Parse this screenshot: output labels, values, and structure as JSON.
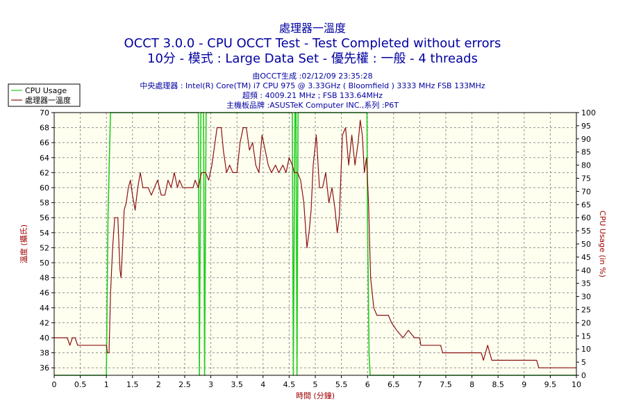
{
  "header": {
    "title": "處理器一溫度",
    "subtitle": "OCCT 3.0.0 - CPU OCCT Test - Test Completed without errors",
    "subtitle2": "10分 - 模式 : Large Data Set - 優先權 : 一般 - 4 threads",
    "info": [
      "由OCCT生成 :02/12/09 23:35:28",
      "中央處理器 : Intel(R) Core(TM) i7 CPU 975 @ 3.33GHz ( Bloomfield ) 3333 MHz FSB 133MHz",
      "超頻 : 4009.21 MHz ; FSB 133.64MHz",
      "主機板品牌 :ASUSTeK Computer INC.,系列 :P6T"
    ]
  },
  "colors": {
    "temperature": "#8b1010",
    "cpu_usage": "#22cc22",
    "plot_bg": "#fffff0",
    "grid": "#909090",
    "text_blue": "#0000a0",
    "axis_label": "#a00000"
  },
  "chart_data": {
    "type": "line",
    "xlabel": "時間 (分鐘)",
    "ylabel_left": "溫度 (攝氏)",
    "ylabel_right": "CPU Usage (in %)",
    "xlim": [
      0,
      10
    ],
    "ylim_left": [
      35,
      70
    ],
    "ylim_right": [
      0,
      100
    ],
    "grid": true,
    "legend_position": "top-left",
    "x_ticks": [
      "0",
      "0.5",
      "1",
      "1.5",
      "2",
      "2.5",
      "3",
      "3.5",
      "4",
      "4.5",
      "5",
      "5.5",
      "6",
      "6.5",
      "7",
      "7.5",
      "8",
      "8.5",
      "9",
      "9.5",
      "10"
    ],
    "y_left_ticks": [
      "36",
      "38",
      "40",
      "42",
      "44",
      "46",
      "48",
      "50",
      "52",
      "54",
      "56",
      "58",
      "60",
      "62",
      "64",
      "66",
      "68",
      "70"
    ],
    "y_right_ticks": [
      "0",
      "5",
      "10",
      "15",
      "20",
      "25",
      "30",
      "35",
      "40",
      "45",
      "50",
      "55",
      "60",
      "65",
      "70",
      "75",
      "80",
      "85",
      "90",
      "95",
      "100"
    ],
    "series": [
      {
        "name": "CPU Usage",
        "axis": "right",
        "points": [
          [
            0,
            0
          ],
          [
            1.0,
            0
          ],
          [
            1.03,
            60
          ],
          [
            1.06,
            85
          ],
          [
            1.08,
            100
          ],
          [
            2.76,
            100
          ],
          [
            2.78,
            0
          ],
          [
            2.81,
            100
          ],
          [
            2.86,
            100
          ],
          [
            2.88,
            0
          ],
          [
            2.91,
            100
          ],
          [
            4.56,
            100
          ],
          [
            4.58,
            0
          ],
          [
            4.61,
            100
          ],
          [
            4.63,
            100
          ],
          [
            4.65,
            0
          ],
          [
            4.67,
            100
          ],
          [
            5.99,
            100
          ],
          [
            6.0,
            60
          ],
          [
            6.03,
            8
          ],
          [
            6.05,
            0
          ],
          [
            10,
            0
          ]
        ]
      },
      {
        "name": "處理器一溫度",
        "axis": "left",
        "points": [
          [
            0,
            40
          ],
          [
            0.25,
            40
          ],
          [
            0.3,
            39
          ],
          [
            0.35,
            40
          ],
          [
            0.4,
            40
          ],
          [
            0.45,
            39
          ],
          [
            1.0,
            39
          ],
          [
            1.02,
            38
          ],
          [
            1.05,
            38
          ],
          [
            1.08,
            46
          ],
          [
            1.12,
            52
          ],
          [
            1.16,
            56
          ],
          [
            1.22,
            56
          ],
          [
            1.26,
            49
          ],
          [
            1.28,
            48
          ],
          [
            1.31,
            52
          ],
          [
            1.34,
            57
          ],
          [
            1.38,
            58
          ],
          [
            1.42,
            60
          ],
          [
            1.46,
            61
          ],
          [
            1.5,
            59
          ],
          [
            1.55,
            57
          ],
          [
            1.6,
            60
          ],
          [
            1.65,
            62
          ],
          [
            1.7,
            60
          ],
          [
            1.8,
            60
          ],
          [
            1.86,
            59
          ],
          [
            1.92,
            60
          ],
          [
            1.98,
            61
          ],
          [
            2.05,
            59
          ],
          [
            2.12,
            59
          ],
          [
            2.18,
            61
          ],
          [
            2.24,
            60
          ],
          [
            2.3,
            62
          ],
          [
            2.36,
            60
          ],
          [
            2.4,
            61
          ],
          [
            2.46,
            60
          ],
          [
            2.66,
            60
          ],
          [
            2.7,
            61
          ],
          [
            2.76,
            60
          ],
          [
            2.82,
            62
          ],
          [
            2.9,
            62
          ],
          [
            2.96,
            61
          ],
          [
            3.02,
            63
          ],
          [
            3.06,
            65
          ],
          [
            3.12,
            68
          ],
          [
            3.2,
            68
          ],
          [
            3.24,
            65
          ],
          [
            3.3,
            62
          ],
          [
            3.36,
            63
          ],
          [
            3.42,
            62
          ],
          [
            3.5,
            62
          ],
          [
            3.56,
            66
          ],
          [
            3.62,
            68
          ],
          [
            3.68,
            68
          ],
          [
            3.74,
            65
          ],
          [
            3.8,
            66
          ],
          [
            3.86,
            63
          ],
          [
            3.92,
            62
          ],
          [
            3.98,
            67
          ],
          [
            4.04,
            65
          ],
          [
            4.1,
            63
          ],
          [
            4.16,
            62
          ],
          [
            4.24,
            63
          ],
          [
            4.3,
            62
          ],
          [
            4.38,
            63
          ],
          [
            4.44,
            62
          ],
          [
            4.5,
            64
          ],
          [
            4.56,
            63
          ],
          [
            4.6,
            62
          ],
          [
            4.66,
            62
          ],
          [
            4.72,
            61
          ],
          [
            4.78,
            58
          ],
          [
            4.84,
            52
          ],
          [
            4.88,
            54
          ],
          [
            4.92,
            57
          ],
          [
            4.96,
            63
          ],
          [
            5.02,
            67
          ],
          [
            5.08,
            60
          ],
          [
            5.14,
            60
          ],
          [
            5.2,
            62
          ],
          [
            5.26,
            58
          ],
          [
            5.32,
            60
          ],
          [
            5.38,
            57
          ],
          [
            5.42,
            54
          ],
          [
            5.46,
            56
          ],
          [
            5.52,
            67
          ],
          [
            5.58,
            68
          ],
          [
            5.64,
            63
          ],
          [
            5.7,
            67
          ],
          [
            5.76,
            63
          ],
          [
            5.82,
            66
          ],
          [
            5.86,
            69
          ],
          [
            5.9,
            67
          ],
          [
            5.94,
            62
          ],
          [
            5.98,
            64
          ],
          [
            6.02,
            58
          ],
          [
            6.06,
            48
          ],
          [
            6.12,
            44
          ],
          [
            6.18,
            43
          ],
          [
            6.4,
            43
          ],
          [
            6.46,
            42
          ],
          [
            6.56,
            41
          ],
          [
            6.68,
            40
          ],
          [
            6.78,
            41
          ],
          [
            6.9,
            40
          ],
          [
            7.0,
            40
          ],
          [
            7.02,
            39
          ],
          [
            7.4,
            39
          ],
          [
            7.44,
            38
          ],
          [
            8.18,
            38
          ],
          [
            8.22,
            37
          ],
          [
            8.26,
            38
          ],
          [
            8.3,
            39
          ],
          [
            8.34,
            38
          ],
          [
            8.38,
            37
          ],
          [
            9.24,
            37
          ],
          [
            9.28,
            36
          ],
          [
            10,
            36
          ]
        ]
      }
    ]
  }
}
